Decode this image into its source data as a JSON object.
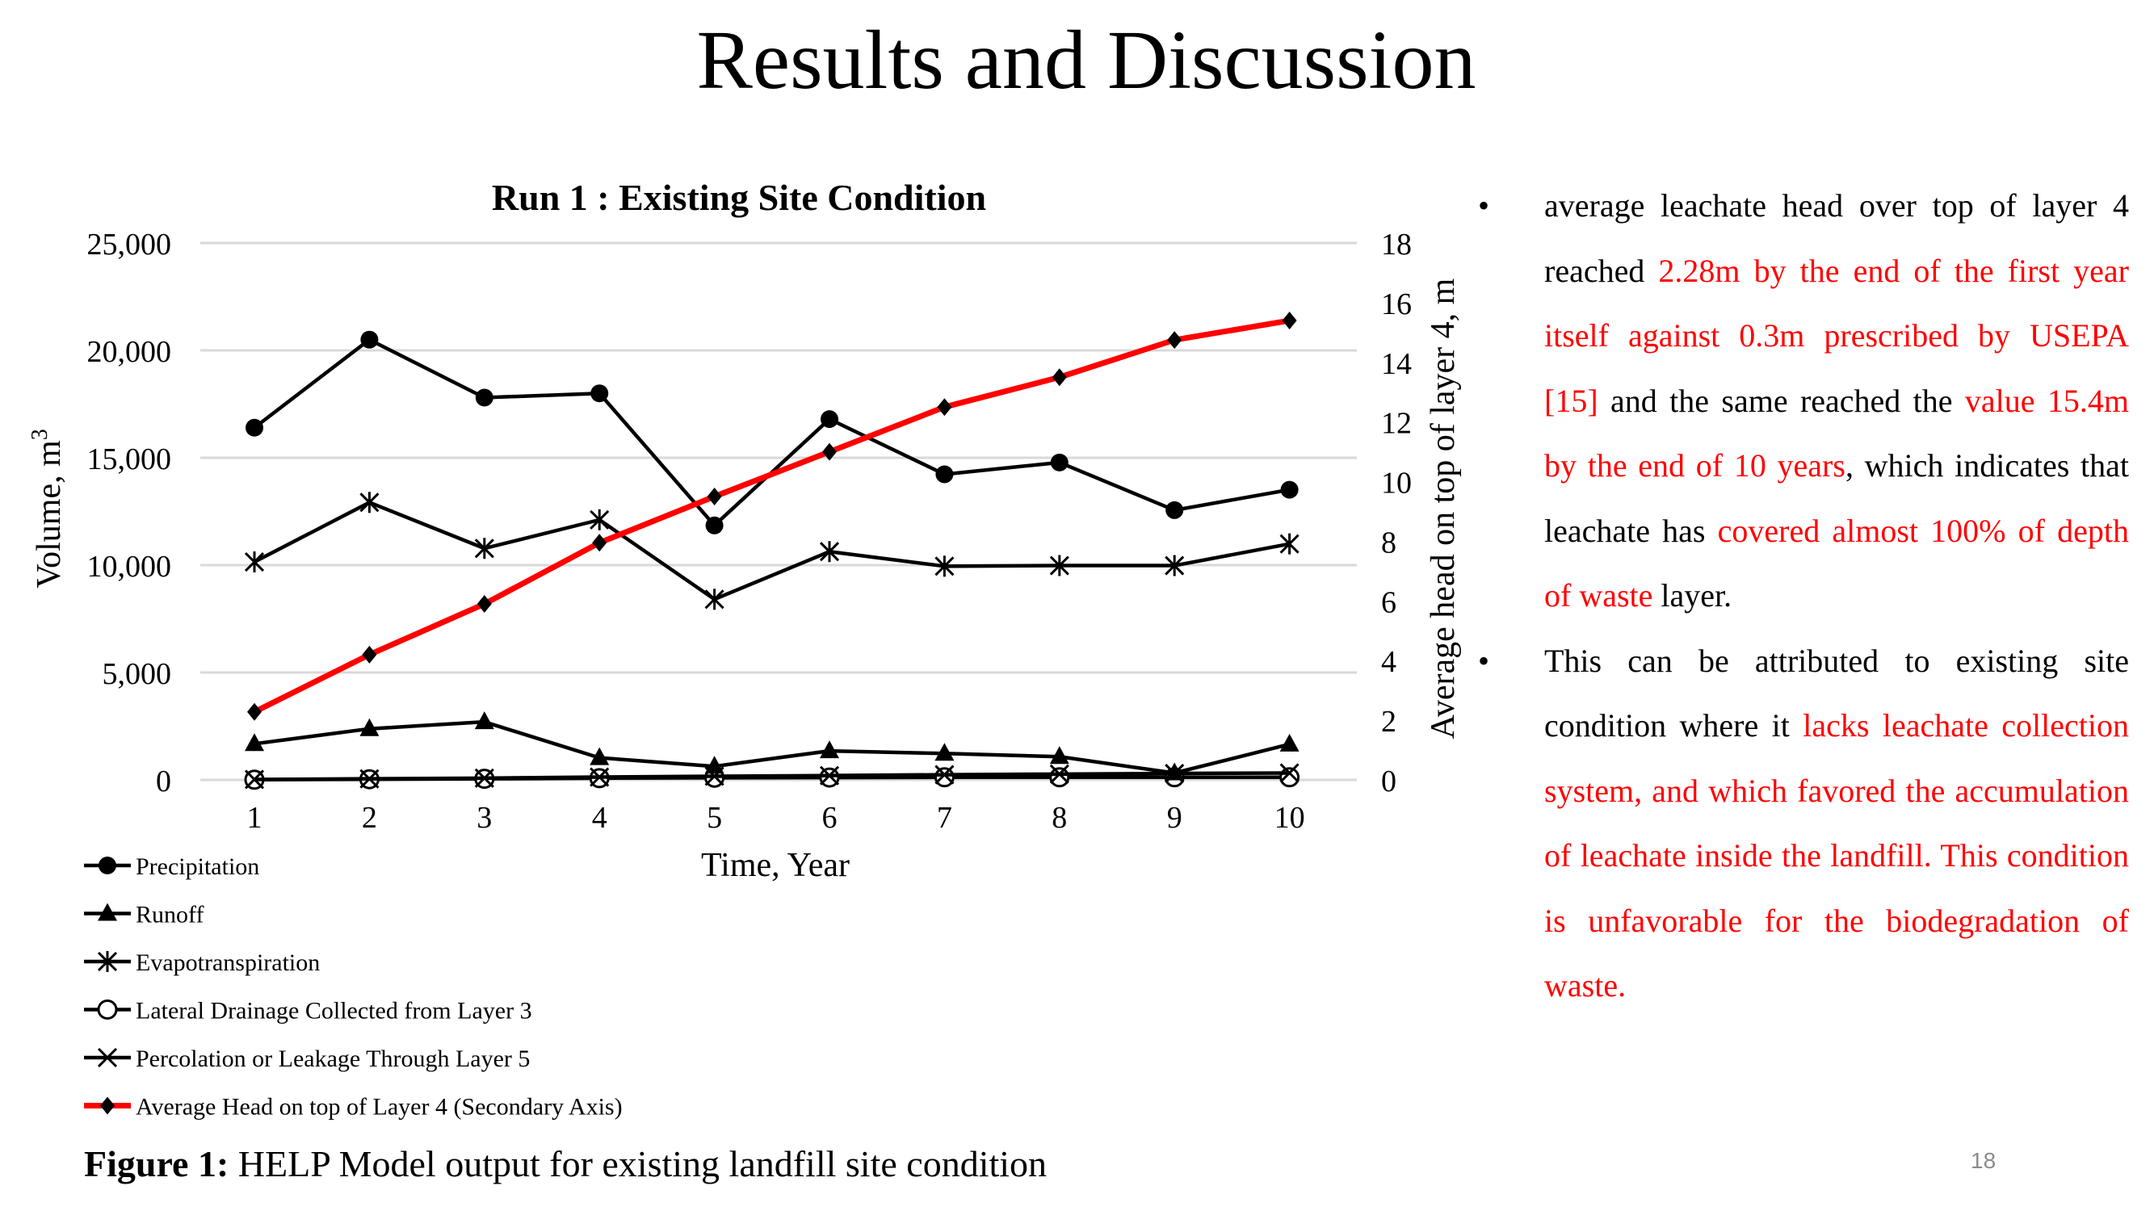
{
  "slide": {
    "title": "Results and Discussion",
    "page_number": "18",
    "caption_label": "Figure 1:",
    "caption_text": " HELP Model output for existing landfill site condition"
  },
  "bullets": [
    {
      "segments": [
        {
          "text": "average leachate head over top of layer 4 reached ",
          "color": "black"
        },
        {
          "text": "2.28m by the end of the first year itself against 0.3m prescribed by USEPA [15]",
          "color": "red"
        },
        {
          "text": " and the same reached the ",
          "color": "black"
        },
        {
          "text": "value 15.4m by the end of 10 years",
          "color": "red"
        },
        {
          "text": ", which indicates that leachate has ",
          "color": "black"
        },
        {
          "text": "covered almost 100% of depth of waste",
          "color": "red"
        },
        {
          "text": " layer.",
          "color": "black"
        }
      ]
    },
    {
      "segments": [
        {
          "text": "This can be attributed to existing site condition where it ",
          "color": "black"
        },
        {
          "text": "lacks leachate collection system, and which favored the accumulation of leachate inside the landfill. This condition is unfavorable for the biodegradation of waste.",
          "color": "red"
        }
      ]
    }
  ],
  "colors": {
    "red": "#ff0000",
    "black": "#000000",
    "grid": "#d9d9d9"
  },
  "chart_data": {
    "type": "line",
    "title": "Run 1 : Existing Site Condition",
    "xlabel": "Time, Year",
    "ylabel": "Volume, m",
    "ylabel_superscript": "3",
    "y2label": "Average head on top of layer 4, m",
    "x": [
      1,
      2,
      3,
      4,
      5,
      6,
      7,
      8,
      9,
      10
    ],
    "ylim": [
      0,
      25000
    ],
    "yticks": [
      0,
      5000,
      10000,
      15000,
      20000,
      25000
    ],
    "ytick_labels": [
      "0",
      "5,000",
      "10,000",
      "15,000",
      "20,000",
      "25,000"
    ],
    "y2lim": [
      0,
      18
    ],
    "y2ticks": [
      0,
      2,
      4,
      6,
      8,
      10,
      12,
      14,
      16,
      18
    ],
    "grid": true,
    "legend_position": "bottom-left",
    "series": [
      {
        "name": "Precipitation",
        "axis": "primary",
        "marker": "circle",
        "color": "#000000",
        "values": [
          16400,
          20500,
          17800,
          18000,
          11850,
          16800,
          14230,
          14780,
          12560,
          13510
        ]
      },
      {
        "name": "Runoff",
        "axis": "primary",
        "marker": "triangle",
        "color": "#000000",
        "values": [
          1680,
          2380,
          2700,
          1030,
          630,
          1350,
          1230,
          1080,
          320,
          1660
        ]
      },
      {
        "name": "Evapotranspiration",
        "axis": "primary",
        "marker": "asterisk",
        "color": "#000000",
        "values": [
          10150,
          12920,
          10780,
          12110,
          8410,
          10630,
          9950,
          9980,
          9980,
          10990
        ]
      },
      {
        "name": "Lateral Drainage Collected from Layer 3",
        "axis": "primary",
        "marker": "open-circle",
        "color": "#000000",
        "values": [
          10,
          30,
          50,
          80,
          100,
          110,
          120,
          120,
          120,
          120
        ]
      },
      {
        "name": "Percolation or Leakage Through Layer 5",
        "axis": "primary",
        "marker": "x",
        "color": "#000000",
        "values": [
          20,
          50,
          80,
          130,
          170,
          200,
          240,
          270,
          300,
          320
        ]
      },
      {
        "name": "Average Head on top of Layer 4 (Secondary Axis)",
        "axis": "secondary",
        "marker": "diamond",
        "color": "#ff0000",
        "values": [
          2.28,
          4.2,
          5.9,
          7.95,
          9.5,
          11.0,
          12.5,
          13.5,
          14.75,
          15.4
        ]
      }
    ]
  }
}
